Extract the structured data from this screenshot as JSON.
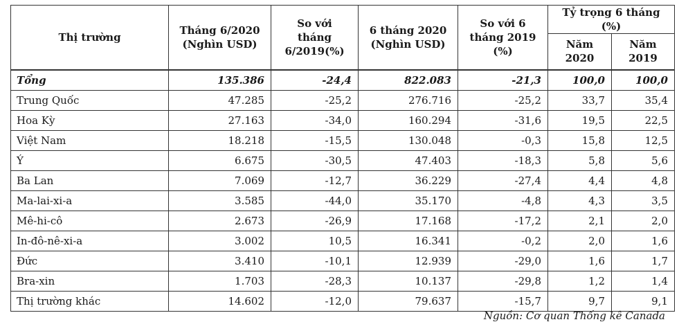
{
  "headers": {
    "market": "Thị trường",
    "month_line1": "Tháng 6/2020",
    "month_line2": "(Nghìn USD)",
    "yoy_month_line1": "So với",
    "yoy_month_line2": "tháng",
    "yoy_month_line3": "6/2019(%)",
    "half_line1": "6 tháng 2020",
    "half_line2": "(Nghìn USD)",
    "yoy_half_line1": "So với 6",
    "yoy_half_line2": "tháng 2019",
    "yoy_half_line3": "(%)",
    "share_group": "Tỷ trọng 6 tháng (%)",
    "share_2020_line1": "Năm",
    "share_2020_line2": "2020",
    "share_2019_line1": "Năm",
    "share_2019_line2": "2019"
  },
  "total": {
    "market": "Tổng",
    "month": "135.386",
    "yoy_month": "-24,4",
    "half": "822.083",
    "yoy_half": "-21,3",
    "share_2020": "100,0",
    "share_2019": "100,0"
  },
  "rows": [
    {
      "market": "Trung Quốc",
      "month": "47.285",
      "yoy_month": "-25,2",
      "half": "276.716",
      "yoy_half": "-25,2",
      "share_2020": "33,7",
      "share_2019": "35,4"
    },
    {
      "market": "Hoa Kỳ",
      "month": "27.163",
      "yoy_month": "-34,0",
      "half": "160.294",
      "yoy_half": "-31,6",
      "share_2020": "19,5",
      "share_2019": "22,5"
    },
    {
      "market": "Việt Nam",
      "month": "18.218",
      "yoy_month": "-15,5",
      "half": "130.048",
      "yoy_half": "-0,3",
      "share_2020": "15,8",
      "share_2019": "12,5"
    },
    {
      "market": "Ý",
      "month": "6.675",
      "yoy_month": "-30,5",
      "half": "47.403",
      "yoy_half": "-18,3",
      "share_2020": "5,8",
      "share_2019": "5,6"
    },
    {
      "market": "Ba Lan",
      "month": "7.069",
      "yoy_month": "-12,7",
      "half": "36.229",
      "yoy_half": "-27,4",
      "share_2020": "4,4",
      "share_2019": "4,8"
    },
    {
      "market": "Ma-lai-xi-a",
      "month": "3.585",
      "yoy_month": "-44,0",
      "half": "35.170",
      "yoy_half": "-4,8",
      "share_2020": "4,3",
      "share_2019": "3,5"
    },
    {
      "market": "Mê-hi-cô",
      "month": "2.673",
      "yoy_month": "-26,9",
      "half": "17.168",
      "yoy_half": "-17,2",
      "share_2020": "2,1",
      "share_2019": "2,0"
    },
    {
      "market": "In-đô-nê-xi-a",
      "month": "3.002",
      "yoy_month": "10,5",
      "half": "16.341",
      "yoy_half": "-0,2",
      "share_2020": "2,0",
      "share_2019": "1,6"
    },
    {
      "market": "Đức",
      "month": "3.410",
      "yoy_month": "-10,1",
      "half": "12.939",
      "yoy_half": "-29,0",
      "share_2020": "1,6",
      "share_2019": "1,7"
    },
    {
      "market": "Bra-xin",
      "month": "1.703",
      "yoy_month": "-28,3",
      "half": "10.137",
      "yoy_half": "-29,8",
      "share_2020": "1,2",
      "share_2019": "1,4"
    },
    {
      "market": "Thị trường khác",
      "month": "14.602",
      "yoy_month": "-12,0",
      "half": "79.637",
      "yoy_half": "-15,7",
      "share_2020": "9,7",
      "share_2019": "9,1"
    }
  ],
  "source_note": "Nguồn: Cơ quan Thống kê Canada"
}
